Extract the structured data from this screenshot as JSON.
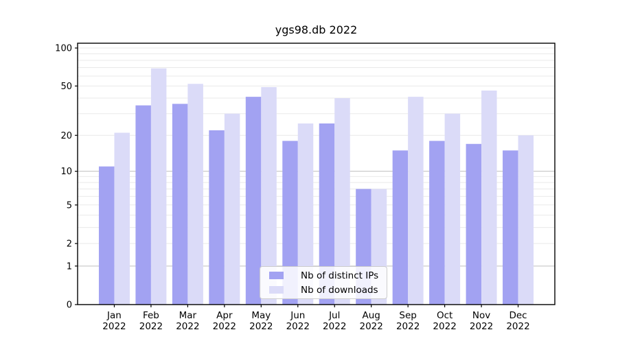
{
  "chart_data": {
    "type": "bar",
    "title": "ygs98.db 2022",
    "categories": [
      "Jan",
      "Feb",
      "Mar",
      "Apr",
      "May",
      "Jun",
      "Jul",
      "Aug",
      "Sep",
      "Oct",
      "Nov",
      "Dec"
    ],
    "category_year": "2022",
    "series": [
      {
        "name": "Nb of distinct IPs",
        "color": "#a2a2f2",
        "values": [
          11,
          35,
          36,
          22,
          41,
          18,
          25,
          7,
          15,
          18,
          17,
          15
        ]
      },
      {
        "name": "Nb of downloads",
        "color": "#dbdbf8",
        "values": [
          21,
          69,
          52,
          30,
          49,
          25,
          40,
          7,
          41,
          30,
          46,
          20
        ]
      }
    ],
    "yscale": "log1p",
    "y_ticks": [
      100,
      50,
      20,
      10,
      5,
      2,
      1,
      0
    ],
    "y_minor_gridlines": [
      2,
      3,
      4,
      5,
      6,
      7,
      8,
      9,
      20,
      30,
      40,
      50,
      60,
      70,
      80,
      90,
      100
    ],
    "y_major_gridlines": [
      1,
      10
    ],
    "ylim": [
      0,
      115
    ],
    "grid": "on",
    "legend_position": "lower center",
    "colors": {
      "spine": "#000000",
      "minor_grid": "#e9e9e9",
      "major_grid": "#bfbfbf",
      "tick_text": "#000000"
    }
  }
}
